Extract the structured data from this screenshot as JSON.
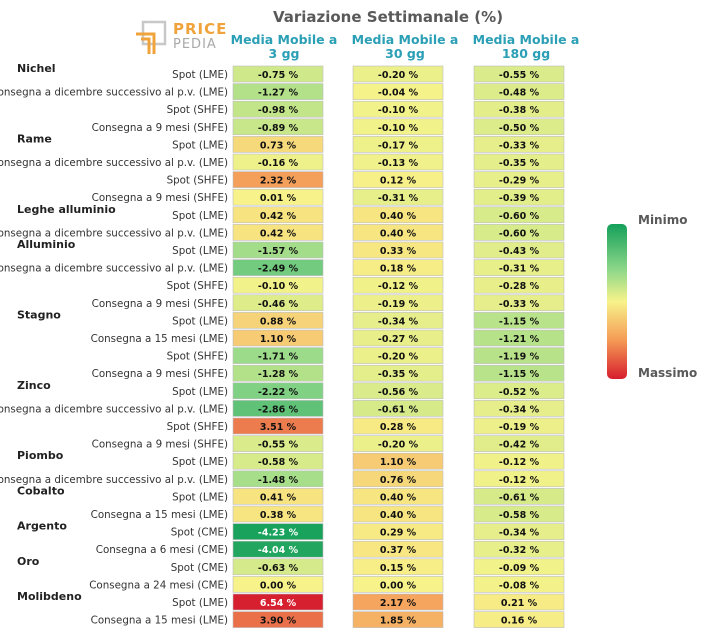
{
  "logo": {
    "line1": "PRICE",
    "line2": "PEDIA",
    "accent_color": "#f0a33a"
  },
  "chart_data": {
    "type": "heatmap",
    "title": "Variazione Settimanale (%)",
    "columns": [
      "Media Mobile a\n3 gg",
      "Media Mobile a\n30 gg",
      "Media Mobile a\n180 gg"
    ],
    "value_suffix": " %",
    "colorscale": {
      "min_label": "Minimo",
      "max_label": "Massimo",
      "min_color": "#14a05a",
      "mid_color": "#f7f38a",
      "max_color": "#d61e2e"
    },
    "groups": [
      {
        "name": "Nichel",
        "rows": [
          {
            "label": "Spot (LME)",
            "values": [
              -0.75,
              -0.2,
              -0.55
            ]
          },
          {
            "label": "Consegna a dicembre successivo al p.v. (LME)",
            "values": [
              -1.27,
              -0.04,
              -0.48
            ]
          },
          {
            "label": "Spot (SHFE)",
            "values": [
              -0.98,
              -0.1,
              -0.38
            ]
          },
          {
            "label": "Consegna a 9 mesi (SHFE)",
            "values": [
              -0.89,
              -0.1,
              -0.5
            ]
          }
        ]
      },
      {
        "name": "Rame",
        "rows": [
          {
            "label": "Spot (LME)",
            "values": [
              0.73,
              -0.17,
              -0.33
            ]
          },
          {
            "label": "Consegna a dicembre successivo al p.v. (LME)",
            "values": [
              -0.16,
              -0.13,
              -0.35
            ]
          },
          {
            "label": "Spot (SHFE)",
            "values": [
              2.32,
              0.12,
              -0.29
            ]
          },
          {
            "label": "Consegna a 9 mesi (SHFE)",
            "values": [
              0.01,
              -0.31,
              -0.39
            ]
          }
        ]
      },
      {
        "name": "Leghe alluminio",
        "rows": [
          {
            "label": "Spot (LME)",
            "values": [
              0.42,
              0.4,
              -0.6
            ]
          },
          {
            "label": "Consegna a dicembre successivo al p.v. (LME)",
            "values": [
              0.42,
              0.4,
              -0.6
            ]
          }
        ]
      },
      {
        "name": "Alluminio",
        "rows": [
          {
            "label": "Spot (LME)",
            "values": [
              -1.57,
              0.33,
              -0.43
            ]
          },
          {
            "label": "Consegna a dicembre successivo al p.v. (LME)",
            "values": [
              -2.49,
              0.18,
              -0.31
            ]
          },
          {
            "label": "Spot (SHFE)",
            "values": [
              -0.1,
              -0.12,
              -0.28
            ]
          },
          {
            "label": "Consegna a 9 mesi (SHFE)",
            "values": [
              -0.46,
              -0.19,
              -0.33
            ]
          }
        ]
      },
      {
        "name": "Stagno",
        "rows": [
          {
            "label": "Spot (LME)",
            "values": [
              0.88,
              -0.34,
              -1.15
            ]
          },
          {
            "label": "Consegna a 15 mesi (LME)",
            "values": [
              1.1,
              -0.27,
              -1.21
            ]
          },
          {
            "label": "Spot (SHFE)",
            "values": [
              -1.71,
              -0.2,
              -1.19
            ]
          },
          {
            "label": "Consegna a 9 mesi (SHFE)",
            "values": [
              -1.28,
              -0.35,
              -1.15
            ]
          }
        ]
      },
      {
        "name": "Zinco",
        "rows": [
          {
            "label": "Spot (LME)",
            "values": [
              -2.22,
              -0.56,
              -0.52
            ]
          },
          {
            "label": "Consegna a dicembre successivo al p.v. (LME)",
            "values": [
              -2.86,
              -0.61,
              -0.34
            ]
          },
          {
            "label": "Spot (SHFE)",
            "values": [
              3.51,
              0.28,
              -0.19
            ]
          },
          {
            "label": "Consegna a 9 mesi (SHFE)",
            "values": [
              -0.55,
              -0.2,
              -0.42
            ]
          }
        ]
      },
      {
        "name": "Piombo",
        "rows": [
          {
            "label": "Spot (LME)",
            "values": [
              -0.58,
              1.1,
              -0.12
            ]
          },
          {
            "label": "Consegna a dicembre successivo al p.v. (LME)",
            "values": [
              -1.48,
              0.76,
              -0.12
            ]
          }
        ]
      },
      {
        "name": "Cobalto",
        "rows": [
          {
            "label": "Spot (LME)",
            "values": [
              0.41,
              0.4,
              -0.61
            ]
          },
          {
            "label": "Consegna a 15 mesi (LME)",
            "values": [
              0.38,
              0.4,
              -0.58
            ]
          }
        ]
      },
      {
        "name": "Argento",
        "rows": [
          {
            "label": "Spot (CME)",
            "values": [
              -4.23,
              0.29,
              -0.34
            ]
          },
          {
            "label": "Consegna a 6 mesi (CME)",
            "values": [
              -4.04,
              0.37,
              -0.32
            ]
          }
        ]
      },
      {
        "name": "Oro",
        "rows": [
          {
            "label": "Spot (CME)",
            "values": [
              -0.63,
              0.15,
              -0.09
            ]
          },
          {
            "label": "Consegna a 24 mesi (CME)",
            "values": [
              0.0,
              0.0,
              -0.08
            ]
          }
        ]
      },
      {
        "name": "Molibdeno",
        "rows": [
          {
            "label": "Spot (LME)",
            "values": [
              6.54,
              2.17,
              0.21
            ]
          },
          {
            "label": "Consegna a 15 mesi (LME)",
            "values": [
              3.9,
              1.85,
              0.16
            ]
          }
        ]
      }
    ]
  }
}
